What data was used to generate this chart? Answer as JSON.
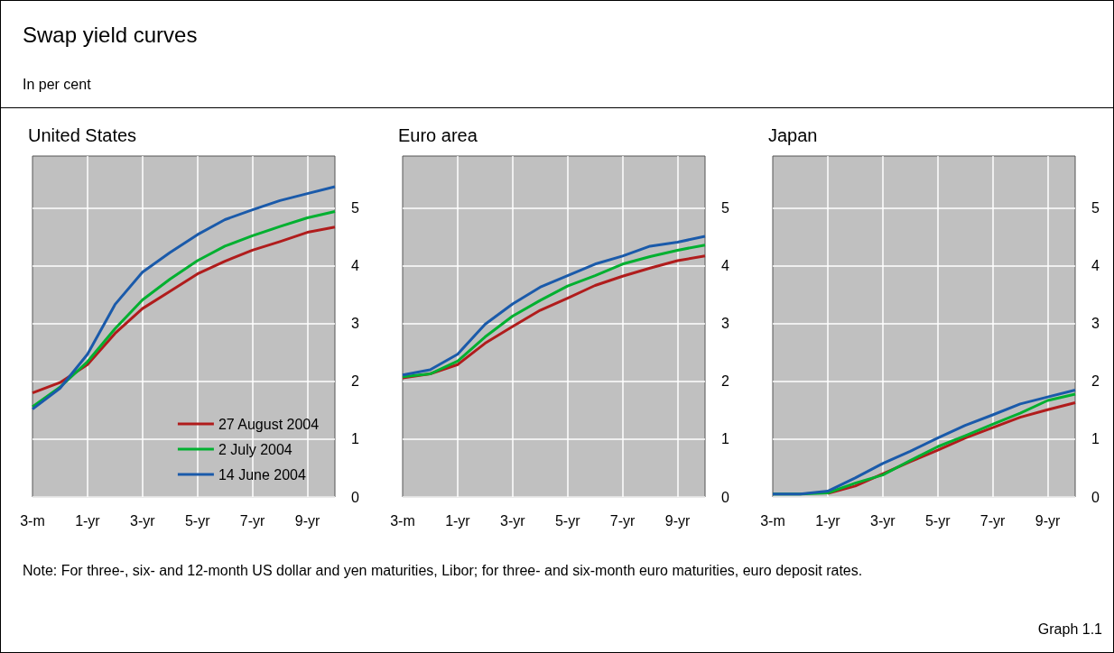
{
  "chart_data": [
    {
      "type": "other",
      "title": "Swap yield curves",
      "subtitle": "In per cent",
      "annotations": [
        "Note: For three-, six- and 12-month US dollar and yen maturities, Libor; for three- and six-month euro maturities, euro deposit rates.",
        "Graph 1.1"
      ]
    },
    {
      "type": "line",
      "title": "United States",
      "categories": [
        "3-m",
        null,
        "1-yr",
        null,
        "3-yr",
        null,
        "5-yr",
        null,
        "7-yr",
        null,
        "9-yr",
        null
      ],
      "ylim": [
        0,
        5.9
      ],
      "yticks": [
        0,
        1,
        2,
        3,
        4,
        5
      ],
      "grid": true,
      "legend": "bottom right",
      "marker": "none",
      "line_style": "solid",
      "series": [
        {
          "name": "27 August 2004",
          "color": "#b01c1c",
          "values": [
            1.8,
            1.98,
            2.29,
            2.83,
            3.26,
            3.56,
            3.86,
            4.08,
            4.27,
            4.42,
            4.58,
            4.67
          ]
        },
        {
          "name": "2 July 2004",
          "color": "#00b030",
          "values": [
            1.56,
            1.9,
            2.34,
            2.91,
            3.41,
            3.77,
            4.09,
            4.34,
            4.52,
            4.68,
            4.83,
            4.94
          ]
        },
        {
          "name": "14 June 2004",
          "color": "#1a5aaa",
          "values": [
            1.52,
            1.88,
            2.47,
            3.33,
            3.89,
            4.23,
            4.54,
            4.8,
            4.97,
            5.13,
            5.25,
            5.37
          ]
        }
      ]
    },
    {
      "type": "line",
      "title": "Euro area",
      "categories": [
        "3-m",
        null,
        "1-yr",
        null,
        "3-yr",
        null,
        "5-yr",
        null,
        "7-yr",
        null,
        "9-yr",
        null
      ],
      "ylim": [
        0,
        5.9
      ],
      "yticks": [
        0,
        1,
        2,
        3,
        4,
        5
      ],
      "grid": true,
      "marker": "none",
      "line_style": "solid",
      "series": [
        {
          "color": "#b01c1c",
          "values": [
            2.06,
            2.13,
            2.29,
            2.66,
            2.95,
            3.23,
            3.44,
            3.66,
            3.82,
            3.96,
            4.09,
            4.17
          ]
        },
        {
          "color": "#00b030",
          "values": [
            2.08,
            2.13,
            2.35,
            2.77,
            3.13,
            3.4,
            3.65,
            3.83,
            4.03,
            4.16,
            4.27,
            4.36
          ]
        },
        {
          "color": "#1a5aaa",
          "values": [
            2.11,
            2.2,
            2.47,
            2.99,
            3.34,
            3.63,
            3.83,
            4.03,
            4.17,
            4.34,
            4.41,
            4.51
          ]
        }
      ]
    },
    {
      "type": "line",
      "title": "Japan",
      "categories": [
        "3-m",
        null,
        "1-yr",
        null,
        "3-yr",
        null,
        "5-yr",
        null,
        "7-yr",
        null,
        "9-yr",
        null
      ],
      "ylim": [
        0,
        5.9
      ],
      "yticks": [
        0,
        1,
        2,
        3,
        4,
        5
      ],
      "grid": true,
      "marker": "none",
      "line_style": "solid",
      "series": [
        {
          "color": "#b01c1c",
          "values": [
            null,
            null,
            0.06,
            0.19,
            0.4,
            0.61,
            0.81,
            1.02,
            1.2,
            1.38,
            1.51,
            1.63
          ]
        },
        {
          "color": "#00b030",
          "values": [
            0.05,
            0.05,
            0.07,
            0.24,
            0.38,
            0.63,
            0.87,
            1.06,
            1.26,
            1.45,
            1.67,
            1.78
          ]
        },
        {
          "color": "#1a5aaa",
          "values": [
            0.05,
            0.05,
            0.1,
            0.33,
            0.58,
            0.79,
            1.02,
            1.24,
            1.42,
            1.61,
            1.73,
            1.85
          ]
        }
      ]
    }
  ]
}
